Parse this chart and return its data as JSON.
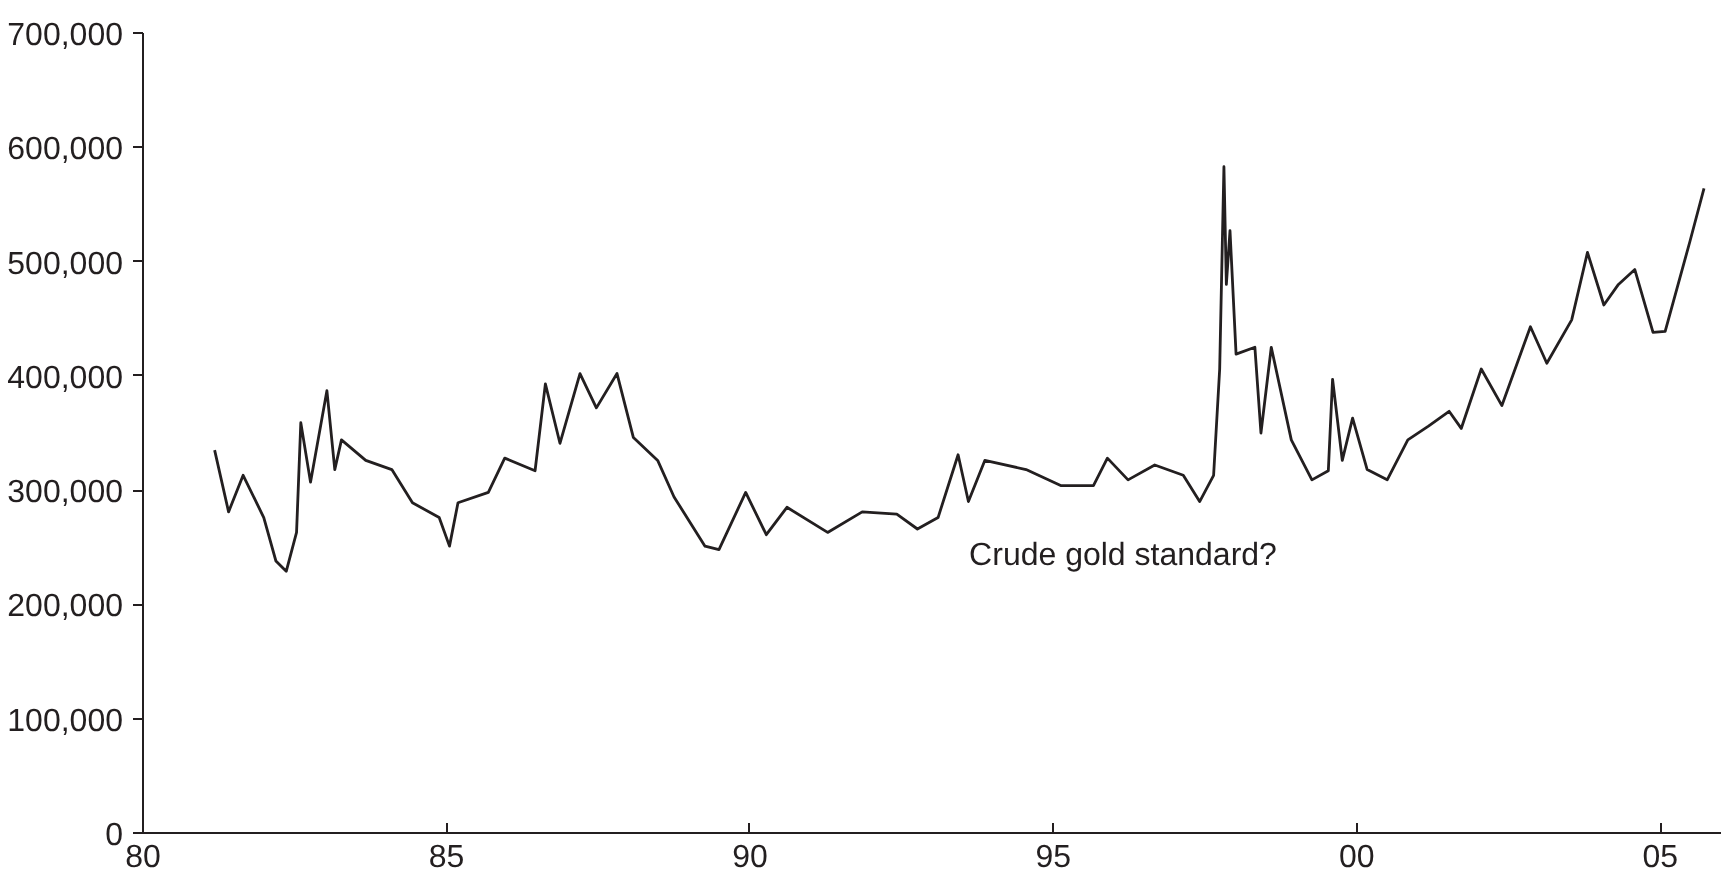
{
  "chart_data": {
    "type": "line",
    "annotations": [
      "Crude gold standard?"
    ],
    "x": [
      1981.18,
      1981.41,
      1981.65,
      1981.99,
      1982.19,
      1982.36,
      1982.53,
      1982.6,
      1982.76,
      1983.03,
      1983.16,
      1983.27,
      1983.67,
      1984.1,
      1984.44,
      1984.88,
      1985.05,
      1985.19,
      1985.69,
      1985.96,
      1986.46,
      1986.63,
      1986.87,
      1987.2,
      1987.47,
      1987.81,
      1988.08,
      1988.48,
      1988.75,
      1989.26,
      1989.49,
      1989.93,
      1990.27,
      1990.61,
      1991.28,
      1991.85,
      1992.42,
      1992.76,
      1993.1,
      1993.43,
      1993.6,
      1993.87,
      1994.55,
      1995.12,
      1995.66,
      1995.89,
      1996.23,
      1996.67,
      1997.14,
      1997.41,
      1997.64,
      1997.74,
      1997.81,
      1997.85,
      1997.91,
      1998.01,
      1998.32,
      1998.42,
      1998.59,
      1998.92,
      1999.26,
      1999.53,
      1999.6,
      1999.76,
      1999.93,
      2000.17,
      2000.5,
      2000.84,
      2001.18,
      2001.52,
      2001.72,
      2002.05,
      2002.39,
      2002.86,
      2003.13,
      2003.54,
      2003.8,
      2004.07,
      2004.31,
      2004.58,
      2004.88,
      2005.08,
      2005.49,
      2005.72
    ],
    "series": [
      {
        "color": "#231f20",
        "values": [
          335000,
          281000,
          313000,
          276000,
          238000,
          229000,
          263000,
          359000,
          307000,
          387000,
          318000,
          344000,
          326000,
          318000,
          289000,
          276000,
          251000,
          289000,
          298000,
          328000,
          317000,
          393000,
          341000,
          402000,
          372000,
          402000,
          346000,
          326000,
          294000,
          251000,
          248000,
          298000,
          261000,
          285000,
          263000,
          281000,
          279000,
          266000,
          276000,
          331000,
          290000,
          326000,
          318000,
          304000,
          304000,
          328000,
          309000,
          322000,
          313000,
          290000,
          313000,
          406000,
          583000,
          480000,
          527000,
          419000,
          425000,
          350000,
          425000,
          344000,
          309000,
          317000,
          397000,
          326000,
          363000,
          318000,
          309000,
          344000,
          356000,
          369000,
          354000,
          406000,
          374000,
          443000,
          411000,
          449000,
          508000,
          462000,
          480000,
          493000,
          438000,
          439000,
          518000,
          564000
        ]
      }
    ],
    "xlim": [
      1980,
      2006
    ],
    "xticks": [
      {
        "value": 1980,
        "label": "80"
      },
      {
        "value": 1985,
        "label": "85"
      },
      {
        "value": 1990,
        "label": "90"
      },
      {
        "value": 1995,
        "label": "95"
      },
      {
        "value": 2000,
        "label": "00"
      },
      {
        "value": 2005,
        "label": "05"
      }
    ],
    "ylim": [
      0,
      700000
    ],
    "yticks": [
      {
        "value": 0,
        "label": "0"
      },
      {
        "value": 100000,
        "label": "100,000"
      },
      {
        "value": 200000,
        "label": "200,000"
      },
      {
        "value": 300000,
        "label": "300,000"
      },
      {
        "value": 400000,
        "label": "400,000"
      },
      {
        "value": 500000,
        "label": "500,000"
      },
      {
        "value": 600000,
        "label": "600,000"
      },
      {
        "value": 700000,
        "label": "700,000"
      }
    ],
    "grid": false
  }
}
